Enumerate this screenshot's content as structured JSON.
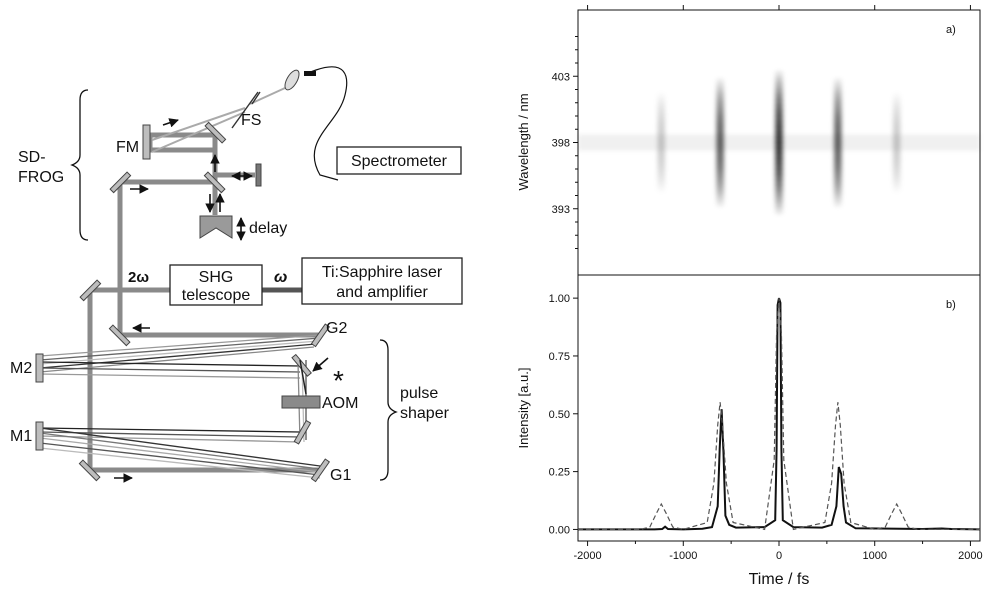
{
  "setup": {
    "section_sdfrog": [
      "SD-",
      "FROG"
    ],
    "section_pulse_shaper": [
      "pulse",
      "shaper"
    ],
    "fm": "FM",
    "fs": "FS",
    "spectrometer": "Spectrometer",
    "delay": "delay",
    "two_omega": "2ω",
    "omega": "ω",
    "shg": [
      "SHG",
      "telescope"
    ],
    "laser": [
      "Ti:Sapphire laser",
      "and amplifier"
    ],
    "g1": "G1",
    "g2": "G2",
    "m1": "M1",
    "m2": "M2",
    "aom": "AOM",
    "star": "*"
  },
  "chart_data": [
    {
      "type": "heatmap",
      "panel_label": "a)",
      "ylabel": "Wavelength / nm",
      "ytick_labels": [
        "403",
        "398",
        "393"
      ],
      "ytick_values": [
        403,
        398,
        393
      ],
      "xlim": [
        -2100,
        2100
      ],
      "ylim": [
        388,
        408
      ],
      "peaks": [
        {
          "t": -1230,
          "rel": 0.18
        },
        {
          "t": -615,
          "rel": 0.72
        },
        {
          "t": 0,
          "rel": 1.0
        },
        {
          "t": 615,
          "rel": 0.72
        },
        {
          "t": 1230,
          "rel": 0.18
        }
      ],
      "colors": {
        "ink": "#000000"
      }
    },
    {
      "type": "line",
      "panel_label": "b)",
      "xlabel": "Time / fs",
      "ylabel": "Intensity [a.u.]",
      "xlim": [
        -2100,
        2100
      ],
      "ylim": [
        -0.05,
        1.1
      ],
      "xtick_labels": [
        "-2000",
        "-1000",
        "0",
        "1000",
        "2000"
      ],
      "xtick_values": [
        -2000,
        -1000,
        0,
        1000,
        2000
      ],
      "ytick_labels": [
        "0.00",
        "0.25",
        "0.50",
        "0.75",
        "1.00"
      ],
      "ytick_values": [
        0,
        0.25,
        0.5,
        0.75,
        1.0
      ],
      "series": [
        {
          "style": "solid",
          "color": "#111111",
          "x": [
            -2100,
            -1300,
            -1220,
            -1190,
            -1160,
            -1000,
            -800,
            -700,
            -640,
            -620,
            -600,
            -580,
            -560,
            -520,
            -450,
            -150,
            -40,
            -25,
            -15,
            0,
            15,
            25,
            40,
            150,
            450,
            550,
            600,
            625,
            650,
            675,
            700,
            800,
            1500,
            1700,
            1800,
            2100
          ],
          "y": [
            0,
            0,
            0.002,
            0.012,
            0.002,
            0,
            0.003,
            0.01,
            0.1,
            0.35,
            0.52,
            0.33,
            0.06,
            0.02,
            0.008,
            0.01,
            0.04,
            0.35,
            0.97,
            1.0,
            0.98,
            0.35,
            0.04,
            0.01,
            0.008,
            0.02,
            0.1,
            0.27,
            0.24,
            0.1,
            0.03,
            0.005,
            0.002,
            0.004,
            0.002,
            0
          ]
        },
        {
          "style": "dashed",
          "color": "#555555",
          "x": [
            -2100,
            -1450,
            -1350,
            -1280,
            -1230,
            -1180,
            -1110,
            -1000,
            -750,
            -680,
            -640,
            -615,
            -590,
            -550,
            -480,
            -150,
            -50,
            -25,
            0,
            25,
            50,
            150,
            480,
            550,
            590,
            615,
            640,
            680,
            750,
            1000,
            1110,
            1180,
            1230,
            1280,
            1350,
            1450,
            2100
          ],
          "y": [
            0,
            0,
            0.01,
            0.07,
            0.11,
            0.07,
            0.01,
            0,
            0.03,
            0.2,
            0.45,
            0.55,
            0.45,
            0.2,
            0.03,
            0,
            0.3,
            0.85,
            1.0,
            0.85,
            0.3,
            0,
            0.03,
            0.2,
            0.45,
            0.55,
            0.45,
            0.2,
            0.03,
            0,
            0.01,
            0.07,
            0.11,
            0.07,
            0.01,
            0,
            0
          ]
        }
      ]
    }
  ]
}
